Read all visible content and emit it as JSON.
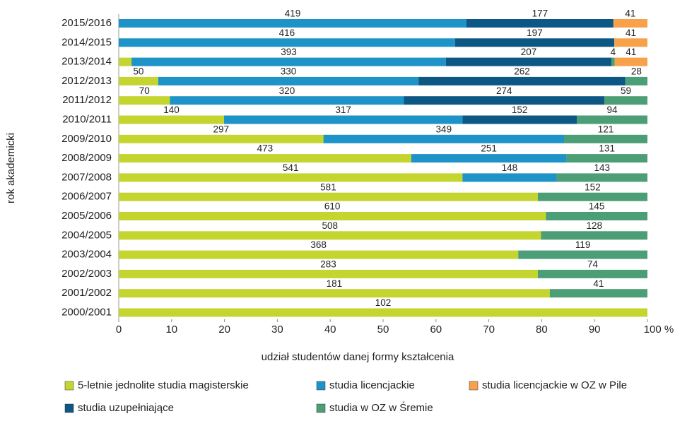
{
  "chart_data": {
    "type": "bar",
    "orientation": "horizontal",
    "stacking": "percent",
    "xlabel": "udział studentów danej formy kształcenia",
    "ylabel": "rok akademicki",
    "categories": [
      "2015/2016",
      "2014/2015",
      "2013/2014",
      "2012/2013",
      "2011/2012",
      "2010/2011",
      "2009/2010",
      "2008/2009",
      "2007/2008",
      "2006/2007",
      "2005/2006",
      "2004/2005",
      "2003/2004",
      "2002/2003",
      "2001/2002",
      "2000/2001"
    ],
    "series": [
      {
        "name": "5-letnie jednolite studia magisterskie",
        "color": "#c5d52f",
        "values": [
          null,
          null,
          16,
          50,
          70,
          140,
          297,
          473,
          541,
          581,
          610,
          508,
          368,
          283,
          181,
          102
        ],
        "value_labels": [
          null,
          null,
          null,
          "50",
          "70",
          "140",
          "297",
          "473",
          "541",
          "581",
          "610",
          "508",
          "368",
          "283",
          "181",
          "102"
        ]
      },
      {
        "name": "studia licencjackie",
        "color": "#1d93c8",
        "values": [
          419,
          416,
          393,
          330,
          320,
          317,
          349,
          251,
          148,
          null,
          null,
          null,
          null,
          null,
          null,
          null
        ]
      },
      {
        "name": "studia uzupełniające",
        "color": "#0d5785",
        "values": [
          177,
          197,
          207,
          262,
          274,
          152,
          null,
          null,
          null,
          null,
          null,
          null,
          null,
          null,
          null,
          null
        ]
      },
      {
        "name": "studia w OZ w Śremie",
        "color": "#4c9e76",
        "values": [
          null,
          null,
          4,
          28,
          59,
          94,
          121,
          131,
          143,
          152,
          145,
          128,
          119,
          74,
          41,
          null
        ]
      },
      {
        "name": "studia licencjackie w OZ w Pile",
        "color": "#f7a24b",
        "values": [
          41,
          41,
          41,
          null,
          null,
          null,
          null,
          null,
          null,
          null,
          null,
          null,
          null,
          null,
          null,
          null
        ]
      }
    ],
    "legend_order": [
      0,
      1,
      4,
      2,
      3
    ],
    "xlim": [
      0,
      100
    ],
    "xticks": [
      0,
      10,
      20,
      30,
      40,
      50,
      60,
      70,
      80,
      90,
      {
        "value": 100,
        "label": "100 %"
      }
    ]
  }
}
